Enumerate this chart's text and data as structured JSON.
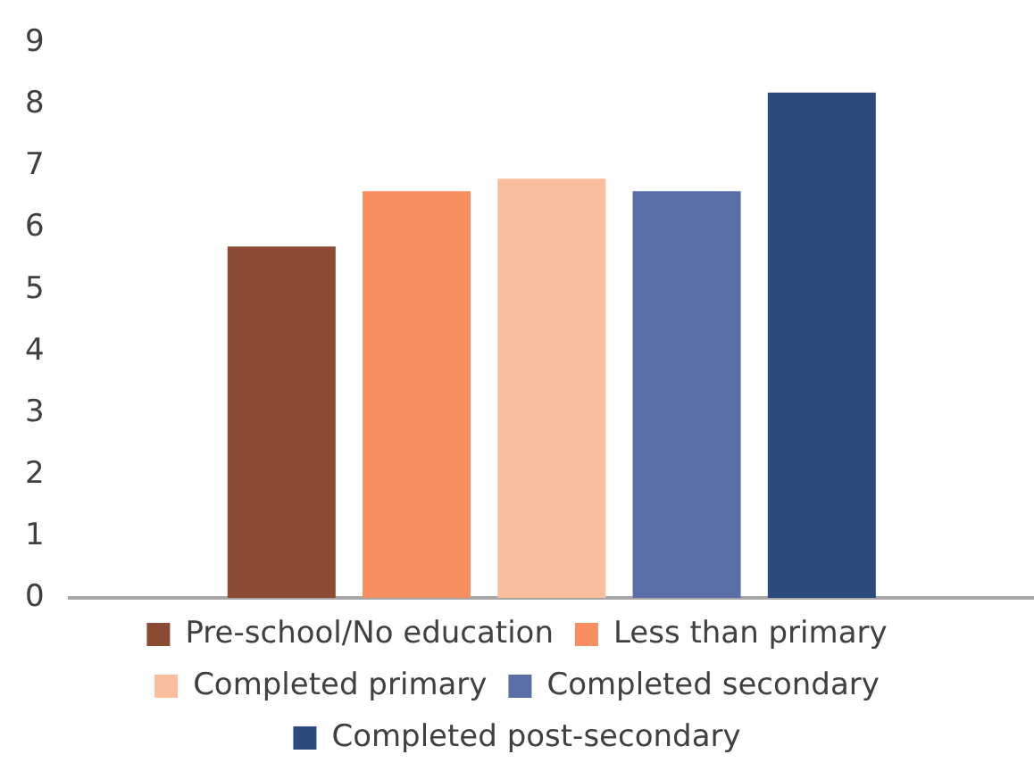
{
  "chart_data": {
    "type": "bar",
    "categories": [
      null
    ],
    "series": [
      {
        "name": "Pre-school/No education",
        "color": "#8b4a32",
        "values": [
          5.7
        ]
      },
      {
        "name": "Less than primary",
        "color": "#f78f61",
        "values": [
          6.6
        ]
      },
      {
        "name": "Completed primary",
        "color": "#f9bf9c",
        "values": [
          6.8
        ]
      },
      {
        "name": "Completed secondary",
        "color": "#5a6fa8",
        "values": [
          6.6
        ]
      },
      {
        "name": "Completed post-secondary",
        "color": "#2c4a7c",
        "values": [
          8.2
        ]
      }
    ],
    "ylim": [
      0,
      9
    ],
    "yticks": [
      0,
      1,
      2,
      3,
      4,
      5,
      6,
      7,
      8,
      9
    ],
    "grid": false,
    "legend": "bottom",
    "tick_labels": "y"
  }
}
